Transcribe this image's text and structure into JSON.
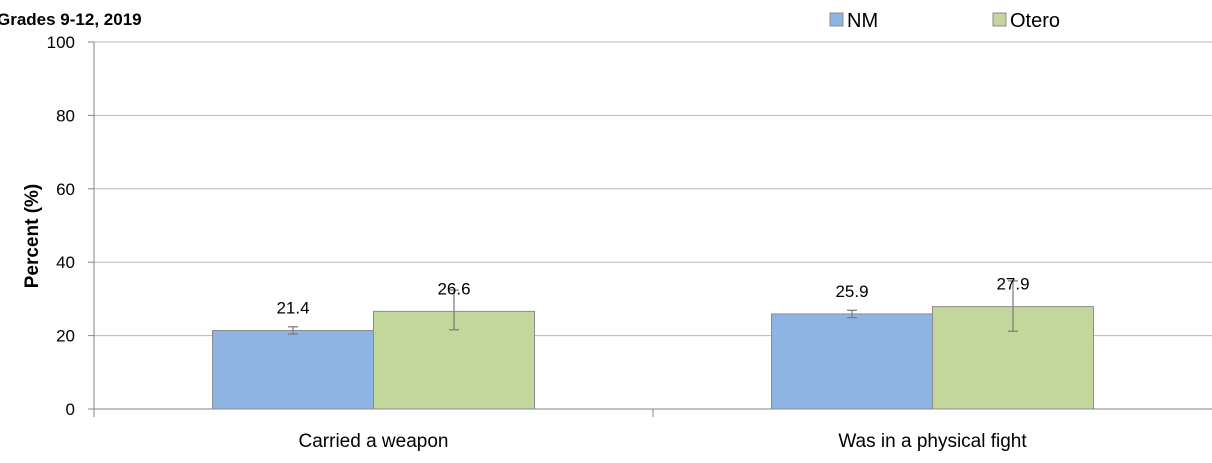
{
  "chart_data": {
    "type": "bar",
    "title": "Grades 9-12, 2019",
    "xlabel": "",
    "ylabel": "Percent (%)",
    "ylim": [
      0,
      100
    ],
    "yticks": [
      0,
      20,
      40,
      60,
      80,
      100
    ],
    "grid": true,
    "legend_position": "top-right",
    "categories": [
      "Carried a weapon",
      "Was in a physical fight"
    ],
    "series": [
      {
        "name": "NM",
        "color": "#8eb4e3",
        "values": [
          21.4,
          25.9
        ],
        "error_low": [
          20.4,
          24.9
        ],
        "error_high": [
          22.4,
          26.9
        ]
      },
      {
        "name": "Otero",
        "color": "#c3d69b",
        "values": [
          26.6,
          27.9
        ],
        "error_low": [
          21.6,
          21.2
        ],
        "error_high": [
          32.4,
          34.9
        ]
      }
    ]
  }
}
